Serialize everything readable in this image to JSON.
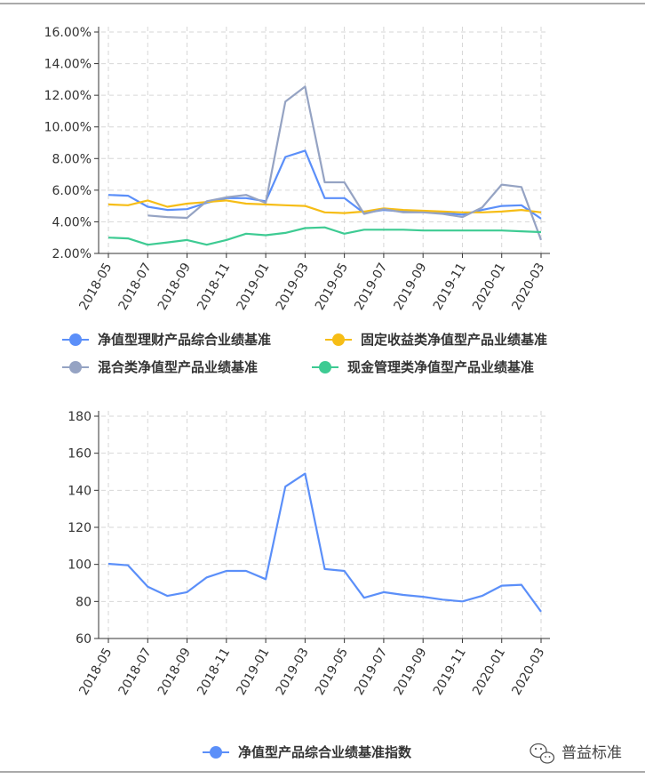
{
  "chart_data": [
    {
      "type": "line",
      "x": [
        "2018-05",
        "2018-06",
        "2018-07",
        "2018-08",
        "2018-09",
        "2018-10",
        "2018-11",
        "2018-12",
        "2019-01",
        "2019-02",
        "2019-03",
        "2019-04",
        "2019-05",
        "2019-06",
        "2019-07",
        "2019-08",
        "2019-09",
        "2019-10",
        "2019-11",
        "2019-12",
        "2020-01",
        "2020-02",
        "2020-03"
      ],
      "xticks": [
        "2018-05",
        "2018-07",
        "2018-09",
        "2018-11",
        "2019-01",
        "2019-03",
        "2019-05",
        "2019-07",
        "2019-09",
        "2019-11",
        "2020-01",
        "2020-03"
      ],
      "ylim": [
        2,
        16
      ],
      "yticks": [
        "2.00%",
        "4.00%",
        "6.00%",
        "8.00%",
        "10.00%",
        "12.00%",
        "14.00%",
        "16.00%"
      ],
      "grid": true,
      "series": [
        {
          "name": "净值型理财产品综合业绩基准",
          "color": "#5b8ff9",
          "values": [
            5.7,
            5.65,
            4.95,
            4.75,
            4.8,
            5.2,
            5.5,
            5.5,
            5.3,
            8.1,
            8.5,
            5.5,
            5.5,
            4.55,
            4.75,
            4.65,
            4.65,
            4.55,
            4.45,
            4.75,
            5.0,
            5.05,
            4.2
          ]
        },
        {
          "name": "固定收益类净值型产品业绩基准",
          "color": "#f6bd16",
          "values": [
            5.1,
            5.05,
            5.35,
            4.95,
            5.15,
            5.25,
            5.35,
            5.15,
            5.1,
            5.05,
            5.0,
            4.6,
            4.55,
            4.65,
            4.85,
            4.75,
            4.7,
            4.65,
            4.6,
            4.6,
            4.65,
            4.75,
            4.6
          ]
        },
        {
          "name": "混合类净值型产品业绩基准",
          "color": "#95a3c3",
          "values": [
            null,
            null,
            4.4,
            4.3,
            4.25,
            5.3,
            5.55,
            5.7,
            5.2,
            11.6,
            12.55,
            6.5,
            6.5,
            4.5,
            4.8,
            4.6,
            4.6,
            4.5,
            4.3,
            4.9,
            6.35,
            6.2,
            2.85
          ]
        },
        {
          "name": "现金管理类净值型产品业绩基准",
          "color": "#3ecb93",
          "values": [
            3.0,
            2.95,
            2.55,
            2.7,
            2.85,
            2.55,
            2.85,
            3.25,
            3.15,
            3.3,
            3.6,
            3.65,
            3.25,
            3.5,
            3.5,
            3.5,
            3.45,
            3.45,
            3.45,
            3.45,
            3.45,
            3.4,
            3.35
          ]
        }
      ]
    },
    {
      "type": "line",
      "x": [
        "2018-05",
        "2018-06",
        "2018-07",
        "2018-08",
        "2018-09",
        "2018-10",
        "2018-11",
        "2018-12",
        "2019-01",
        "2019-02",
        "2019-03",
        "2019-04",
        "2019-05",
        "2019-06",
        "2019-07",
        "2019-08",
        "2019-09",
        "2019-10",
        "2019-11",
        "2019-12",
        "2020-01",
        "2020-02",
        "2020-03"
      ],
      "xticks": [
        "2018-05",
        "2018-07",
        "2018-09",
        "2018-11",
        "2019-01",
        "2019-03",
        "2019-05",
        "2019-07",
        "2019-09",
        "2019-11",
        "2020-01",
        "2020-03"
      ],
      "ylim": [
        60,
        180
      ],
      "yticks": [
        "60",
        "80",
        "100",
        "120",
        "140",
        "160",
        "180"
      ],
      "grid": true,
      "series": [
        {
          "name": "净值型产品综合业绩基准指数",
          "color": "#5b8ff9",
          "values": [
            100.3,
            99.5,
            88,
            83,
            85,
            93,
            96.5,
            96.5,
            92,
            142,
            149,
            97.5,
            96.5,
            82,
            85,
            83.5,
            82.5,
            81,
            80,
            83,
            88.5,
            89,
            74.5
          ]
        }
      ]
    }
  ],
  "brand": {
    "name": "普益标准",
    "icon": "wechat-icon"
  }
}
